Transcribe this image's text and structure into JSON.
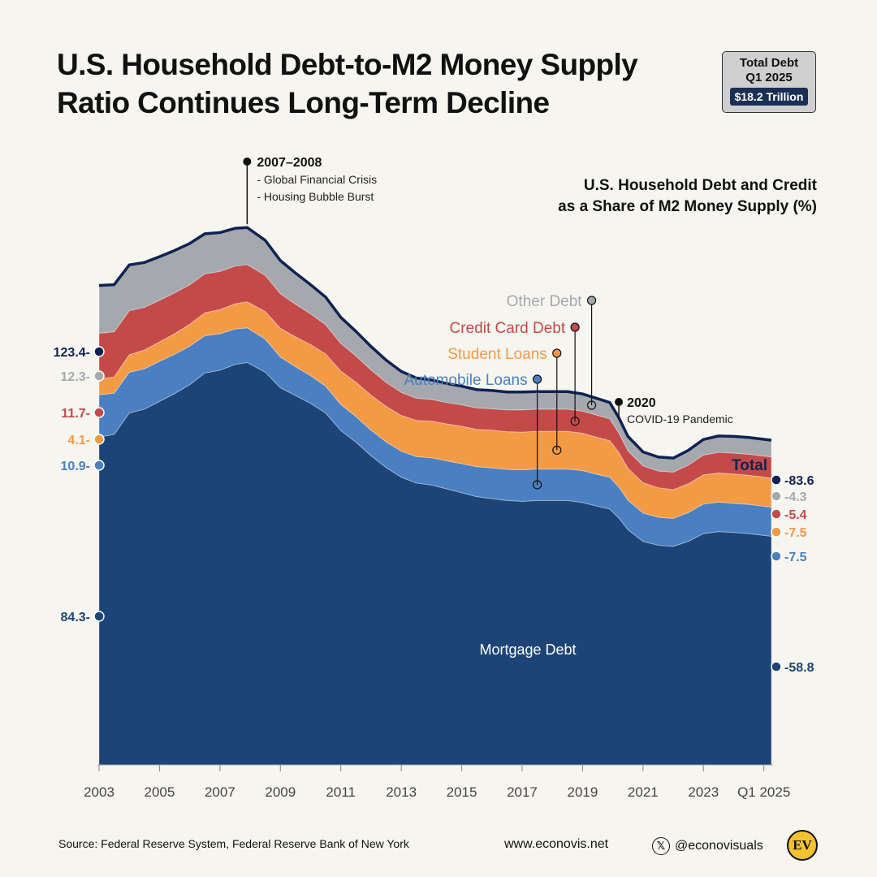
{
  "title": {
    "line1": "U.S. Household Debt-to-M2 Money Supply",
    "line2": "Ratio Continues Long-Term Decline"
  },
  "badge": {
    "line1": "Total Debt",
    "line2": "Q1 2025",
    "value": "$18.2 Trillion"
  },
  "subtitle": {
    "line1": "U.S. Household Debt and Credit",
    "line2": "as a Share of M2 Money Supply (%)"
  },
  "annotations": {
    "gfc_title": "2007–2008",
    "gfc_line1": "- Global Financial Crisis",
    "gfc_line2": "- Housing Bubble Burst",
    "covid_title": "2020",
    "covid_line1": "COVID-19 Pandemic",
    "total_label": "Total",
    "mortgage_label": "Mortgage Debt"
  },
  "footer": {
    "source": "Source: Federal Reserve System, Federal Reserve Bank of New York",
    "website": "www.econovis.net",
    "handle": "@econovisuals",
    "x_glyph": "𝕏",
    "logo": "EV"
  },
  "colors": {
    "background": "#f7f5f0",
    "mortgage": "#1d4477",
    "auto": "#4a80c2",
    "student": "#f39a45",
    "credit": "#c44a4a",
    "other": "#a5a9ae",
    "total": "#0f2352"
  },
  "chart_data": {
    "type": "area",
    "stacked": true,
    "title": "U.S. Household Debt and Credit as a Share of M2 Money Supply (%)",
    "x": [
      2003,
      2003.5,
      2004,
      2004.5,
      2005,
      2005.5,
      2006,
      2006.5,
      2007,
      2007.5,
      2007.9,
      2008.5,
      2009,
      2009.5,
      2010,
      2010.5,
      2011,
      2011.5,
      2012,
      2012.5,
      2013,
      2013.5,
      2014,
      2014.5,
      2015,
      2015.5,
      2016,
      2016.5,
      2017,
      2017.5,
      2018,
      2018.5,
      2019,
      2019.5,
      2019.9,
      2020.2,
      2020.5,
      2021,
      2021.5,
      2022,
      2022.5,
      2023,
      2023.5,
      2024,
      2024.5,
      2025.25
    ],
    "xticks": [
      "2003",
      "2005",
      "2007",
      "2009",
      "2011",
      "2013",
      "2015",
      "2017",
      "2019",
      "2021",
      "2023",
      "Q1 2025"
    ],
    "xtick_values": [
      2003,
      2005,
      2007,
      2009,
      2011,
      2013,
      2015,
      2017,
      2019,
      2021,
      2023,
      2025
    ],
    "series": [
      {
        "name": "Mortgage Debt",
        "values": [
          84.3,
          85.0,
          90.5,
          91.5,
          93.5,
          95.5,
          97.8,
          100.8,
          101.5,
          103.0,
          103.5,
          101.0,
          97.0,
          95.0,
          93.0,
          90.5,
          86.0,
          83.0,
          79.5,
          76.5,
          74.0,
          72.5,
          72.0,
          71.0,
          70.0,
          69.0,
          68.5,
          68.0,
          67.8,
          68.0,
          68.0,
          68.0,
          67.5,
          66.5,
          65.8,
          63.5,
          60.5,
          57.5,
          56.5,
          56.2,
          57.5,
          59.5,
          60.0,
          59.8,
          59.5,
          58.8
        ]
      },
      {
        "name": "Automobile Loans",
        "values": [
          10.9,
          10.6,
          10.5,
          10.4,
          10.3,
          10.1,
          9.9,
          9.6,
          9.4,
          9.1,
          8.9,
          8.5,
          7.9,
          7.4,
          7.1,
          6.9,
          6.7,
          6.6,
          6.6,
          6.6,
          6.7,
          6.8,
          7.0,
          7.2,
          7.5,
          7.7,
          7.9,
          8.0,
          8.1,
          8.1,
          8.1,
          8.1,
          8.2,
          8.2,
          8.2,
          8.0,
          7.6,
          7.3,
          7.2,
          7.2,
          7.4,
          7.6,
          7.6,
          7.5,
          7.5,
          7.5
        ]
      },
      {
        "name": "Student Loans",
        "values": [
          4.1,
          4.2,
          4.5,
          4.8,
          5.0,
          5.3,
          5.6,
          5.9,
          6.2,
          6.5,
          6.7,
          7.1,
          7.4,
          7.7,
          8.0,
          8.3,
          8.6,
          8.8,
          9.0,
          9.1,
          9.2,
          9.3,
          9.4,
          9.5,
          9.6,
          9.6,
          9.7,
          9.7,
          9.7,
          9.7,
          9.7,
          9.7,
          9.6,
          9.5,
          9.4,
          8.9,
          8.2,
          7.8,
          7.6,
          7.4,
          7.4,
          7.5,
          7.5,
          7.5,
          7.5,
          7.5
        ]
      },
      {
        "name": "Credit Card Debt",
        "values": [
          11.7,
          11.6,
          11.3,
          11.0,
          10.7,
          10.5,
          10.2,
          10.0,
          9.8,
          9.7,
          9.6,
          9.3,
          8.9,
          8.4,
          7.9,
          7.5,
          7.1,
          6.8,
          6.5,
          6.2,
          5.9,
          5.7,
          5.6,
          5.5,
          5.5,
          5.5,
          5.5,
          5.6,
          5.7,
          5.7,
          5.7,
          5.7,
          5.7,
          5.7,
          5.6,
          5.0,
          4.5,
          4.3,
          4.3,
          4.5,
          4.8,
          5.1,
          5.3,
          5.4,
          5.4,
          5.4
        ]
      },
      {
        "name": "Other Debt",
        "values": [
          12.3,
          12.1,
          11.8,
          11.5,
          11.2,
          10.9,
          10.6,
          10.3,
          10.0,
          9.7,
          9.5,
          9.0,
          8.5,
          8.0,
          7.5,
          7.1,
          6.7,
          6.3,
          6.0,
          5.7,
          5.4,
          5.2,
          5.0,
          4.9,
          4.8,
          4.7,
          4.7,
          4.6,
          4.6,
          4.5,
          4.5,
          4.5,
          4.4,
          4.3,
          4.2,
          3.9,
          3.7,
          3.6,
          3.6,
          3.6,
          3.8,
          4.0,
          4.2,
          4.3,
          4.3,
          4.3
        ]
      }
    ],
    "total": {
      "name": "Total",
      "start": 123.4,
      "end": 83.6
    },
    "start_labels": [
      "123.4",
      "12.3",
      "11.7",
      "4.1",
      "10.9",
      "84.3"
    ],
    "end_labels": [
      "83.6",
      "4.3",
      "5.4",
      "7.5",
      "7.5",
      "58.8"
    ],
    "ylim": [
      0,
      142
    ],
    "grid": false,
    "legend": "inline-labels"
  }
}
